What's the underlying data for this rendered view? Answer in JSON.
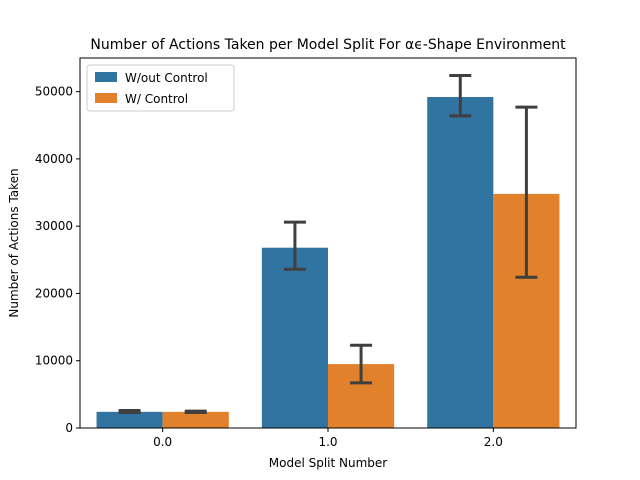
{
  "chart_data": {
    "type": "bar",
    "title": "Number of Actions Taken per Model Split For αϵ-Shape Environment",
    "xlabel": "Model Split Number",
    "ylabel": "Number of Actions Taken",
    "categories": [
      "0.0",
      "1.0",
      "2.0"
    ],
    "ylim": [
      0,
      55000
    ],
    "yticks": [
      0,
      10000,
      20000,
      30000,
      40000,
      50000
    ],
    "ytick_labels": [
      "0",
      "10000",
      "20000",
      "30000",
      "40000",
      "50000"
    ],
    "grid": false,
    "legend_position": "top-left",
    "series": [
      {
        "name": "W/out Control",
        "color": "#3274a1",
        "values": [
          2400,
          26800,
          49200
        ],
        "error_low": [
          2300,
          23600,
          46400
        ],
        "error_high": [
          2600,
          30600,
          52400
        ]
      },
      {
        "name": "W/ Control",
        "color": "#e1812c",
        "values": [
          2400,
          9500,
          34800
        ],
        "error_low": [
          2300,
          6700,
          22400
        ],
        "error_high": [
          2500,
          12300,
          47700
        ]
      }
    ]
  }
}
